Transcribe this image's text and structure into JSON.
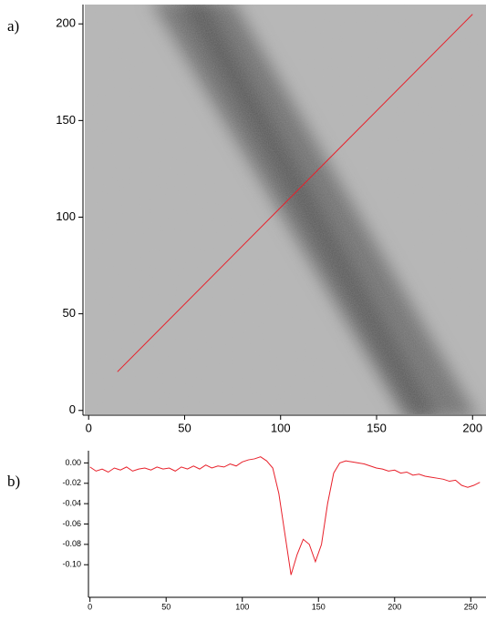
{
  "chart_data": [
    {
      "type": "image",
      "panel_label": "a)",
      "xlim": [
        -2,
        207
      ],
      "ylim": [
        -2,
        210
      ],
      "xticks": [
        0,
        50,
        100,
        150,
        200
      ],
      "yticks": [
        0,
        50,
        100,
        150,
        200
      ],
      "series": [
        {
          "color": "#e8202a",
          "x": [
            15,
            200
          ],
          "y": [
            20,
            205
          ]
        }
      ]
    },
    {
      "type": "line",
      "panel_label": "b)",
      "xlim": [
        -1,
        260
      ],
      "ylim": [
        -0.132,
        0.012
      ],
      "xticks": [
        0,
        50,
        100,
        150,
        200,
        250
      ],
      "yticks": [
        {
          "value": 0,
          "label": "0.00"
        },
        -0.02,
        -0.04,
        -0.06,
        -0.08,
        {
          "value": -0.1,
          "label": "-0.10"
        }
      ],
      "x": [
        0,
        4,
        8,
        12,
        16,
        20,
        24,
        28,
        32,
        36,
        40,
        44,
        48,
        52,
        56,
        60,
        64,
        68,
        72,
        76,
        80,
        84,
        88,
        92,
        96,
        100,
        104,
        108,
        112,
        116,
        120,
        124,
        128,
        132,
        136,
        140,
        144,
        148,
        152,
        156,
        160,
        164,
        168,
        172,
        176,
        180,
        184,
        188,
        192,
        196,
        200,
        204,
        208,
        212,
        216,
        220,
        224,
        228,
        232,
        236,
        240,
        244,
        248,
        252,
        256
      ],
      "series": [
        {
          "color": "#e8202a",
          "values": [
            -0.004,
            -0.008,
            -0.006,
            -0.009,
            -0.005,
            -0.007,
            -0.004,
            -0.008,
            -0.006,
            -0.005,
            -0.007,
            -0.004,
            -0.006,
            -0.005,
            -0.008,
            -0.004,
            -0.006,
            -0.003,
            -0.006,
            -0.002,
            -0.005,
            -0.003,
            -0.004,
            -0.001,
            -0.003,
            0.001,
            0.003,
            0.004,
            0.006,
            0.002,
            -0.005,
            -0.03,
            -0.07,
            -0.11,
            -0.09,
            -0.075,
            -0.08,
            -0.097,
            -0.08,
            -0.04,
            -0.01,
            0,
            0.002,
            0.001,
            0,
            -0.001,
            -0.003,
            -0.005,
            -0.006,
            -0.008,
            -0.007,
            -0.01,
            -0.009,
            -0.012,
            -0.011,
            -0.013,
            -0.014,
            -0.015,
            -0.016,
            -0.018,
            -0.017,
            -0.022,
            -0.024,
            -0.022,
            -0.019
          ]
        }
      ]
    }
  ]
}
